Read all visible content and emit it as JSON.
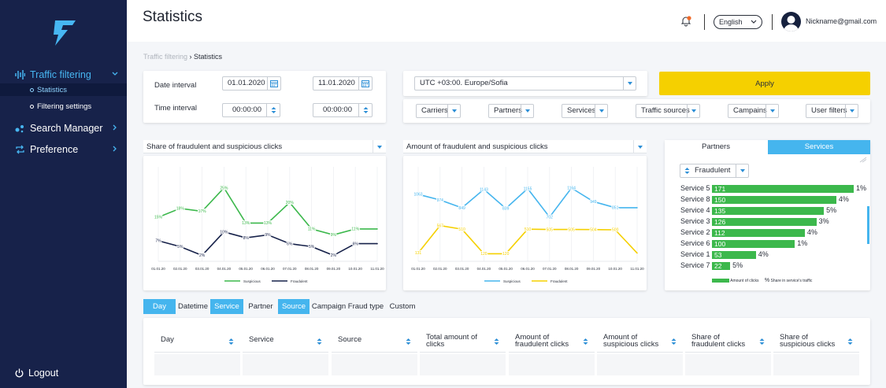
{
  "app": {
    "page_title": "Statistics",
    "colors": {
      "sidebar": "#17224a",
      "accent": "#47b6f2",
      "apply": "#f5d000",
      "bar": "#3cb84c",
      "suspicious_line": "#3cb84c",
      "fraudulent_line": "#17224a",
      "chart2_suspicious": "#45b5ee",
      "chart2_fraudulent": "#f5d000"
    }
  },
  "sidebar": {
    "items": [
      {
        "label": "Traffic filtering",
        "icon": "waveform-icon"
      },
      {
        "label": "Statistics"
      },
      {
        "label": "Filtering settings"
      },
      {
        "label": "Search Manager",
        "icon": "dots-icon"
      },
      {
        "label": "Preference",
        "icon": "repeat-icon"
      }
    ],
    "logout_label": "Logout"
  },
  "header": {
    "language": "English",
    "email": "Nickname@gmail.com"
  },
  "breadcrumb": {
    "parent": "Traffic filtering",
    "sep": " › ",
    "current": "Statistics"
  },
  "filters": {
    "date_label": "Date interval",
    "time_label": "Time  interval",
    "date_from": "01.01.2020",
    "date_to": "11.01.2020",
    "time_from": "00:00:00",
    "time_to": "00:00:00",
    "timezone": "UTC +03:00. Europe/Sofia",
    "apply_label": "Apply",
    "dropdowns": [
      "Carriers",
      "Partners",
      "Services",
      "Traffic sources",
      "Campains",
      "User filters"
    ]
  },
  "charts": {
    "left_title": "Share of fraudulent and suspicious clicks",
    "mid_title": "Amount of fraudulent and suspicious clicks"
  },
  "chart_data": [
    {
      "type": "line",
      "title": "Share of fraudulent and suspicious clicks",
      "x": [
        "01.01.20",
        "02.01.20",
        "03.01.20",
        "04.01.20",
        "05.01.20",
        "06.01.20",
        "07.01.20",
        "08.01.20",
        "09.01.20",
        "10.01.20",
        "11.01.20"
      ],
      "series": [
        {
          "name": "Suspicious",
          "values": [
            15,
            18,
            17,
            25,
            13,
            13,
            20,
            11,
            9,
            11,
            11
          ],
          "labels": [
            "15%",
            "18%",
            "17%",
            "25%",
            "13%",
            "13%",
            "20%",
            "11%",
            "9%",
            "11%",
            ""
          ]
        },
        {
          "name": "Fraudulent",
          "values": [
            7,
            5,
            2,
            10,
            8,
            9,
            6,
            5,
            2,
            6,
            6
          ],
          "labels": [
            "7%",
            "5%",
            "2%",
            "10%",
            "8%",
            "9%",
            "6%",
            "5%",
            "2%",
            "6%",
            ""
          ]
        }
      ],
      "ylim": [
        0,
        30
      ],
      "grid": true,
      "legend": "bottom"
    },
    {
      "type": "line",
      "title": "Amount of fraudulent and suspicious clicks",
      "x": [
        "01.01.20",
        "02.01.20",
        "03.01.20",
        "04.01.20",
        "05.01.20",
        "06.01.20",
        "07.01.20",
        "08.01.20",
        "09.01.20",
        "10.01.20",
        "11.01.20"
      ],
      "series": [
        {
          "name": "Suspicious",
          "values": [
            1063,
            974,
            849,
            1143,
            839,
            1155,
            702,
            1164,
            949,
            851,
            851
          ],
          "labels": [
            "1063",
            "974",
            "849",
            "1143",
            "839",
            "1155",
            "702",
            "1164",
            "949",
            "851",
            ""
          ]
        },
        {
          "name": "Fraudulent",
          "values": [
            131,
            567,
            510,
            120,
            120,
            510,
            505,
            505,
            504,
            500,
            131
          ],
          "labels": [
            "131",
            "567",
            "510",
            "120",
            "120",
            "510",
            "505",
            "505",
            "504",
            "500",
            ""
          ]
        }
      ],
      "ylim": [
        0,
        1400
      ],
      "grid": true,
      "legend": "bottom"
    },
    {
      "type": "bar",
      "tabs": [
        "Partners",
        "Services"
      ],
      "active_tab": "Services",
      "filter": "Fraudulent",
      "categories": [
        "Service 5",
        "Service 8",
        "Service 4",
        "Service 3",
        "Service 2",
        "Service 6",
        "Service 1",
        "Service 7"
      ],
      "values": [
        171,
        150,
        135,
        126,
        112,
        100,
        53,
        22
      ],
      "share": [
        "1%",
        "4%",
        "5%",
        "3%",
        "4%",
        "1%",
        "4%",
        "5%"
      ],
      "legend": [
        "Amount of clicks",
        "Share in service's traffic"
      ]
    }
  ],
  "grouping_tabs": [
    {
      "label": "Day",
      "on": true
    },
    {
      "label": "Datetime",
      "on": false
    },
    {
      "label": "Service",
      "on": true
    },
    {
      "label": "Partner",
      "on": false
    },
    {
      "label": "Source",
      "on": true
    },
    {
      "label": "Campaign",
      "on": false
    },
    {
      "label": "Fraud type",
      "on": false
    },
    {
      "label": "Custom",
      "on": false
    }
  ],
  "table": {
    "columns": [
      "Day",
      "Service",
      "Source",
      "Total amount of clicks",
      "Amount of fraudulent clicks",
      "Amount of suspicious clicks",
      "Share of fraudulent clicks",
      "Share of suspicious clicks"
    ],
    "columns_lines": [
      [
        "Day"
      ],
      [
        "Service"
      ],
      [
        "Source"
      ],
      [
        "Total amount of",
        "clicks"
      ],
      [
        "Amount of",
        "fraudulent clicks"
      ],
      [
        "Amount of",
        "suspicious clicks"
      ],
      [
        "Share of",
        "fraudulent clicks"
      ],
      [
        "Share of",
        "suspicious clicks"
      ]
    ]
  }
}
